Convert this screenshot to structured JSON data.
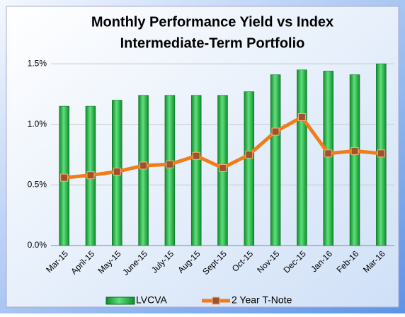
{
  "chart_data": {
    "type": "bar_line",
    "title": "Monthly Performance Yield vs Index",
    "subtitle": "Intermediate-Term Portfolio",
    "categories": [
      "Mar-15",
      "April-15",
      "May-15",
      "June-15",
      "July-15",
      "Aug-15",
      "Sept-15",
      "Oct-15",
      "Nov-15",
      "Dec-15",
      "Jan-16",
      "Feb-16",
      "Mar-16"
    ],
    "series": [
      {
        "name": "LVCVA",
        "type": "bar",
        "color": "#22b14c",
        "values": [
          1.15,
          1.15,
          1.2,
          1.24,
          1.24,
          1.24,
          1.24,
          1.27,
          1.41,
          1.45,
          1.44,
          1.41,
          1.5
        ]
      },
      {
        "name": "2 Year T-Note",
        "type": "line",
        "color": "#f07d1a",
        "values": [
          0.56,
          0.58,
          0.61,
          0.66,
          0.67,
          0.74,
          0.64,
          0.75,
          0.94,
          1.06,
          0.76,
          0.78,
          0.76
        ]
      }
    ],
    "ylim": [
      0,
      1.6
    ],
    "yticks": [
      {
        "value": 0,
        "label": "0.0%"
      },
      {
        "value": 0.5,
        "label": "0.5%"
      },
      {
        "value": 1,
        "label": "1.0%"
      },
      {
        "value": 1.5,
        "label": "1.5%"
      }
    ],
    "grid": true,
    "legend": "bottom"
  }
}
